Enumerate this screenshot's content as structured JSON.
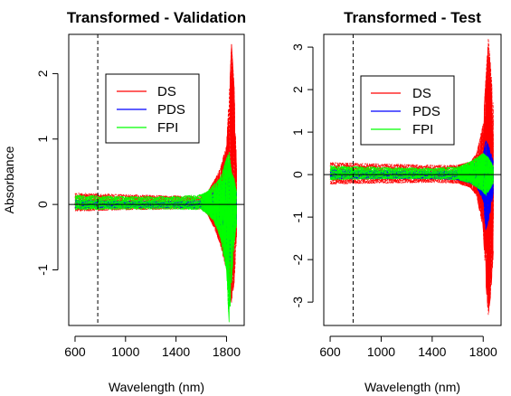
{
  "chart_data": [
    {
      "type": "line",
      "title": "Transformed - Validation",
      "xlabel": "Wavelength (nm)",
      "ylabel": "Absorbance",
      "xlim": [
        550,
        1940
      ],
      "ylim": [
        -1.85,
        2.6
      ],
      "xticks": [
        600,
        1000,
        1400,
        1800
      ],
      "xtick_labels": [
        "600",
        "1000",
        "1400",
        "1800"
      ],
      "yticks": [
        -1,
        0,
        1,
        2
      ],
      "ytick_labels": [
        "-1",
        "0",
        "1",
        "2"
      ],
      "vline_x": 780,
      "hline_y": 0,
      "legend": {
        "position": "upper-center",
        "entries": [
          "DS",
          "PDS",
          "FPI"
        ]
      },
      "series": [
        {
          "name": "DS",
          "color": "#ff0000",
          "envelope_x": [
            600,
            1000,
            1400,
            1600,
            1650,
            1700,
            1750,
            1800,
            1820,
            1840,
            1860,
            1880
          ],
          "upper": [
            0.17,
            0.15,
            0.13,
            0.12,
            0.2,
            0.35,
            0.55,
            0.9,
            1.6,
            2.45,
            1.8,
            0.6
          ],
          "lower": [
            -0.1,
            -0.08,
            -0.07,
            -0.07,
            -0.15,
            -0.35,
            -0.6,
            -1.0,
            -1.3,
            -1.5,
            -1.2,
            -0.5
          ]
        },
        {
          "name": "PDS",
          "color": "#0000ff",
          "envelope_x": [
            600,
            1000,
            1400,
            1600,
            1650,
            1700,
            1750,
            1800,
            1820,
            1840,
            1860,
            1880
          ],
          "upper": [
            0.07,
            0.05,
            0.05,
            0.06,
            0.12,
            0.2,
            0.3,
            0.4,
            0.45,
            0.4,
            0.3,
            0.2
          ],
          "lower": [
            -0.06,
            -0.05,
            -0.05,
            -0.06,
            -0.12,
            -0.2,
            -0.35,
            -0.6,
            -0.9,
            -0.8,
            -0.5,
            -0.3
          ]
        },
        {
          "name": "FPI",
          "color": "#00ff00",
          "envelope_x": [
            600,
            1000,
            1400,
            1600,
            1650,
            1700,
            1750,
            1800,
            1820,
            1840,
            1860,
            1880
          ],
          "upper": [
            0.14,
            0.12,
            0.12,
            0.15,
            0.2,
            0.3,
            0.4,
            0.7,
            0.8,
            0.5,
            0.4,
            0.2
          ],
          "lower": [
            -0.08,
            -0.07,
            -0.07,
            -0.08,
            -0.15,
            -0.25,
            -0.5,
            -1.0,
            -1.8,
            -1.2,
            -0.6,
            -0.3
          ]
        }
      ]
    },
    {
      "type": "line",
      "title": "Transformed - Test",
      "xlabel": "Wavelength (nm)",
      "ylabel": "",
      "xlim": [
        550,
        1940
      ],
      "ylim": [
        -3.55,
        3.3
      ],
      "xticks": [
        600,
        1000,
        1400,
        1800
      ],
      "xtick_labels": [
        "600",
        "1000",
        "1400",
        "1800"
      ],
      "yticks": [
        -3,
        -2,
        -1,
        0,
        1,
        2,
        3
      ],
      "ytick_labels": [
        "-3",
        "-2",
        "-1",
        "0",
        "1",
        "2",
        "3"
      ],
      "vline_x": 780,
      "hline_y": 0,
      "legend": {
        "position": "upper-center",
        "entries": [
          "DS",
          "PDS",
          "FPI"
        ]
      },
      "series": [
        {
          "name": "DS",
          "color": "#ff0000",
          "envelope_x": [
            600,
            1000,
            1400,
            1600,
            1700,
            1750,
            1800,
            1820,
            1840,
            1860,
            1880
          ],
          "upper": [
            0.28,
            0.25,
            0.22,
            0.22,
            0.3,
            0.5,
            1.2,
            2.2,
            3.2,
            2.5,
            1.5
          ],
          "lower": [
            -0.22,
            -0.2,
            -0.18,
            -0.2,
            -0.3,
            -0.5,
            -1.3,
            -2.5,
            -3.3,
            -2.8,
            -1.8
          ]
        },
        {
          "name": "PDS",
          "color": "#0000ff",
          "envelope_x": [
            600,
            1000,
            1400,
            1600,
            1700,
            1750,
            1800,
            1820,
            1840,
            1860,
            1880
          ],
          "upper": [
            0.12,
            0.1,
            0.08,
            0.1,
            0.2,
            0.3,
            0.5,
            0.8,
            0.7,
            0.5,
            0.3
          ],
          "lower": [
            -0.1,
            -0.1,
            -0.1,
            -0.12,
            -0.2,
            -0.3,
            -0.6,
            -1.3,
            -1.1,
            -0.8,
            -0.4
          ]
        },
        {
          "name": "FPI",
          "color": "#00ff00",
          "envelope_x": [
            600,
            1000,
            1400,
            1600,
            1700,
            1750,
            1800,
            1820,
            1840,
            1860,
            1880
          ],
          "upper": [
            0.2,
            0.17,
            0.15,
            0.18,
            0.3,
            0.4,
            0.5,
            0.45,
            0.4,
            0.3,
            0.2
          ],
          "lower": [
            -0.12,
            -0.1,
            -0.1,
            -0.12,
            -0.2,
            -0.3,
            -0.4,
            -0.5,
            -0.4,
            -0.3,
            -0.2
          ]
        }
      ]
    }
  ]
}
